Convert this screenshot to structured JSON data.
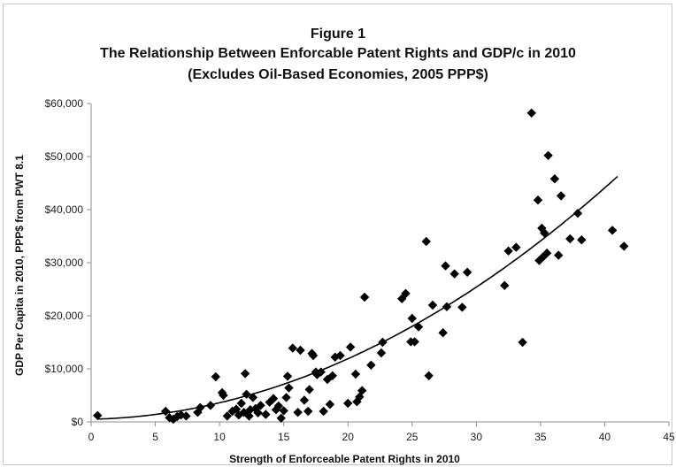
{
  "chart_data": {
    "type": "scatter",
    "title": "Figure 1",
    "subtitle": "The Relationship Between Enforcable Patent Rights and GDP/c in 2010",
    "subtitle2": "(Excludes Oil-Based Economies, 2005 PPP$)",
    "xlabel": "Strength of Enforceable Patent Rights in 2010",
    "ylabel": "GDP Per Capita in 2010, PPP$ from PWT 8.1",
    "xlim": [
      0,
      45
    ],
    "ylim": [
      0,
      60000
    ],
    "xticks": [
      "0",
      "5",
      "10",
      "15",
      "20",
      "25",
      "30",
      "35",
      "40",
      "45"
    ],
    "yticks": [
      "$0",
      "$10,000",
      "$20,000",
      "$30,000",
      "$40,000",
      "$50,000",
      "$60,000"
    ],
    "grid": false,
    "marker_color": "#000000",
    "trend_color": "#000000",
    "points": [
      [
        0.5,
        1200
      ],
      [
        5.8,
        2000
      ],
      [
        6.1,
        800
      ],
      [
        6.4,
        500
      ],
      [
        6.7,
        1000
      ],
      [
        7.0,
        1300
      ],
      [
        7.4,
        1100
      ],
      [
        8.3,
        1800
      ],
      [
        8.5,
        2700
      ],
      [
        9.3,
        3100
      ],
      [
        9.7,
        8500
      ],
      [
        10.2,
        5500
      ],
      [
        10.3,
        5000
      ],
      [
        10.6,
        1100
      ],
      [
        11.0,
        2000
      ],
      [
        11.3,
        2400
      ],
      [
        11.5,
        1300
      ],
      [
        11.7,
        3500
      ],
      [
        11.9,
        1800
      ],
      [
        12.0,
        9100
      ],
      [
        12.1,
        5200
      ],
      [
        12.3,
        1100
      ],
      [
        12.4,
        2300
      ],
      [
        12.6,
        4600
      ],
      [
        12.8,
        2500
      ],
      [
        13.0,
        1700
      ],
      [
        13.2,
        3100
      ],
      [
        13.6,
        1400
      ],
      [
        13.9,
        3700
      ],
      [
        14.2,
        4400
      ],
      [
        14.4,
        2300
      ],
      [
        14.6,
        3000
      ],
      [
        14.8,
        700
      ],
      [
        15.0,
        2100
      ],
      [
        15.2,
        4600
      ],
      [
        15.3,
        8600
      ],
      [
        15.4,
        6400
      ],
      [
        15.7,
        13900
      ],
      [
        16.1,
        1800
      ],
      [
        16.3,
        13500
      ],
      [
        16.6,
        4100
      ],
      [
        16.9,
        2000
      ],
      [
        17.0,
        6100
      ],
      [
        17.2,
        12900
      ],
      [
        17.3,
        12500
      ],
      [
        17.5,
        9400
      ],
      [
        17.6,
        8900
      ],
      [
        17.9,
        9400
      ],
      [
        18.1,
        2000
      ],
      [
        18.4,
        8000
      ],
      [
        18.6,
        3300
      ],
      [
        18.8,
        8700
      ],
      [
        19.0,
        12200
      ],
      [
        19.4,
        12500
      ],
      [
        20.0,
        3500
      ],
      [
        20.2,
        14100
      ],
      [
        20.6,
        9000
      ],
      [
        20.7,
        3800
      ],
      [
        20.9,
        4700
      ],
      [
        21.1,
        5900
      ],
      [
        21.3,
        23500
      ],
      [
        21.8,
        10700
      ],
      [
        22.6,
        13000
      ],
      [
        22.7,
        15000
      ],
      [
        24.2,
        23200
      ],
      [
        24.5,
        24200
      ],
      [
        24.9,
        15100
      ],
      [
        25.0,
        19500
      ],
      [
        25.2,
        15100
      ],
      [
        25.5,
        17900
      ],
      [
        26.1,
        34000
      ],
      [
        26.3,
        8700
      ],
      [
        26.6,
        22000
      ],
      [
        27.4,
        16800
      ],
      [
        27.6,
        29400
      ],
      [
        27.7,
        21700
      ],
      [
        28.3,
        27900
      ],
      [
        28.9,
        21600
      ],
      [
        29.3,
        28200
      ],
      [
        32.2,
        25700
      ],
      [
        32.5,
        32200
      ],
      [
        33.1,
        32900
      ],
      [
        33.6,
        15000
      ],
      [
        34.3,
        58200
      ],
      [
        34.8,
        41800
      ],
      [
        34.9,
        30400
      ],
      [
        35.1,
        36500
      ],
      [
        35.2,
        31100
      ],
      [
        35.3,
        35600
      ],
      [
        35.5,
        31800
      ],
      [
        35.6,
        50200
      ],
      [
        36.1,
        45800
      ],
      [
        36.4,
        31400
      ],
      [
        36.6,
        42600
      ],
      [
        37.3,
        34500
      ],
      [
        37.9,
        39300
      ],
      [
        38.2,
        34300
      ],
      [
        40.6,
        36100
      ],
      [
        41.5,
        33100
      ]
    ],
    "trend": {
      "type": "polynomial",
      "coefficients": [
        500,
        50,
        26
      ]
    }
  }
}
